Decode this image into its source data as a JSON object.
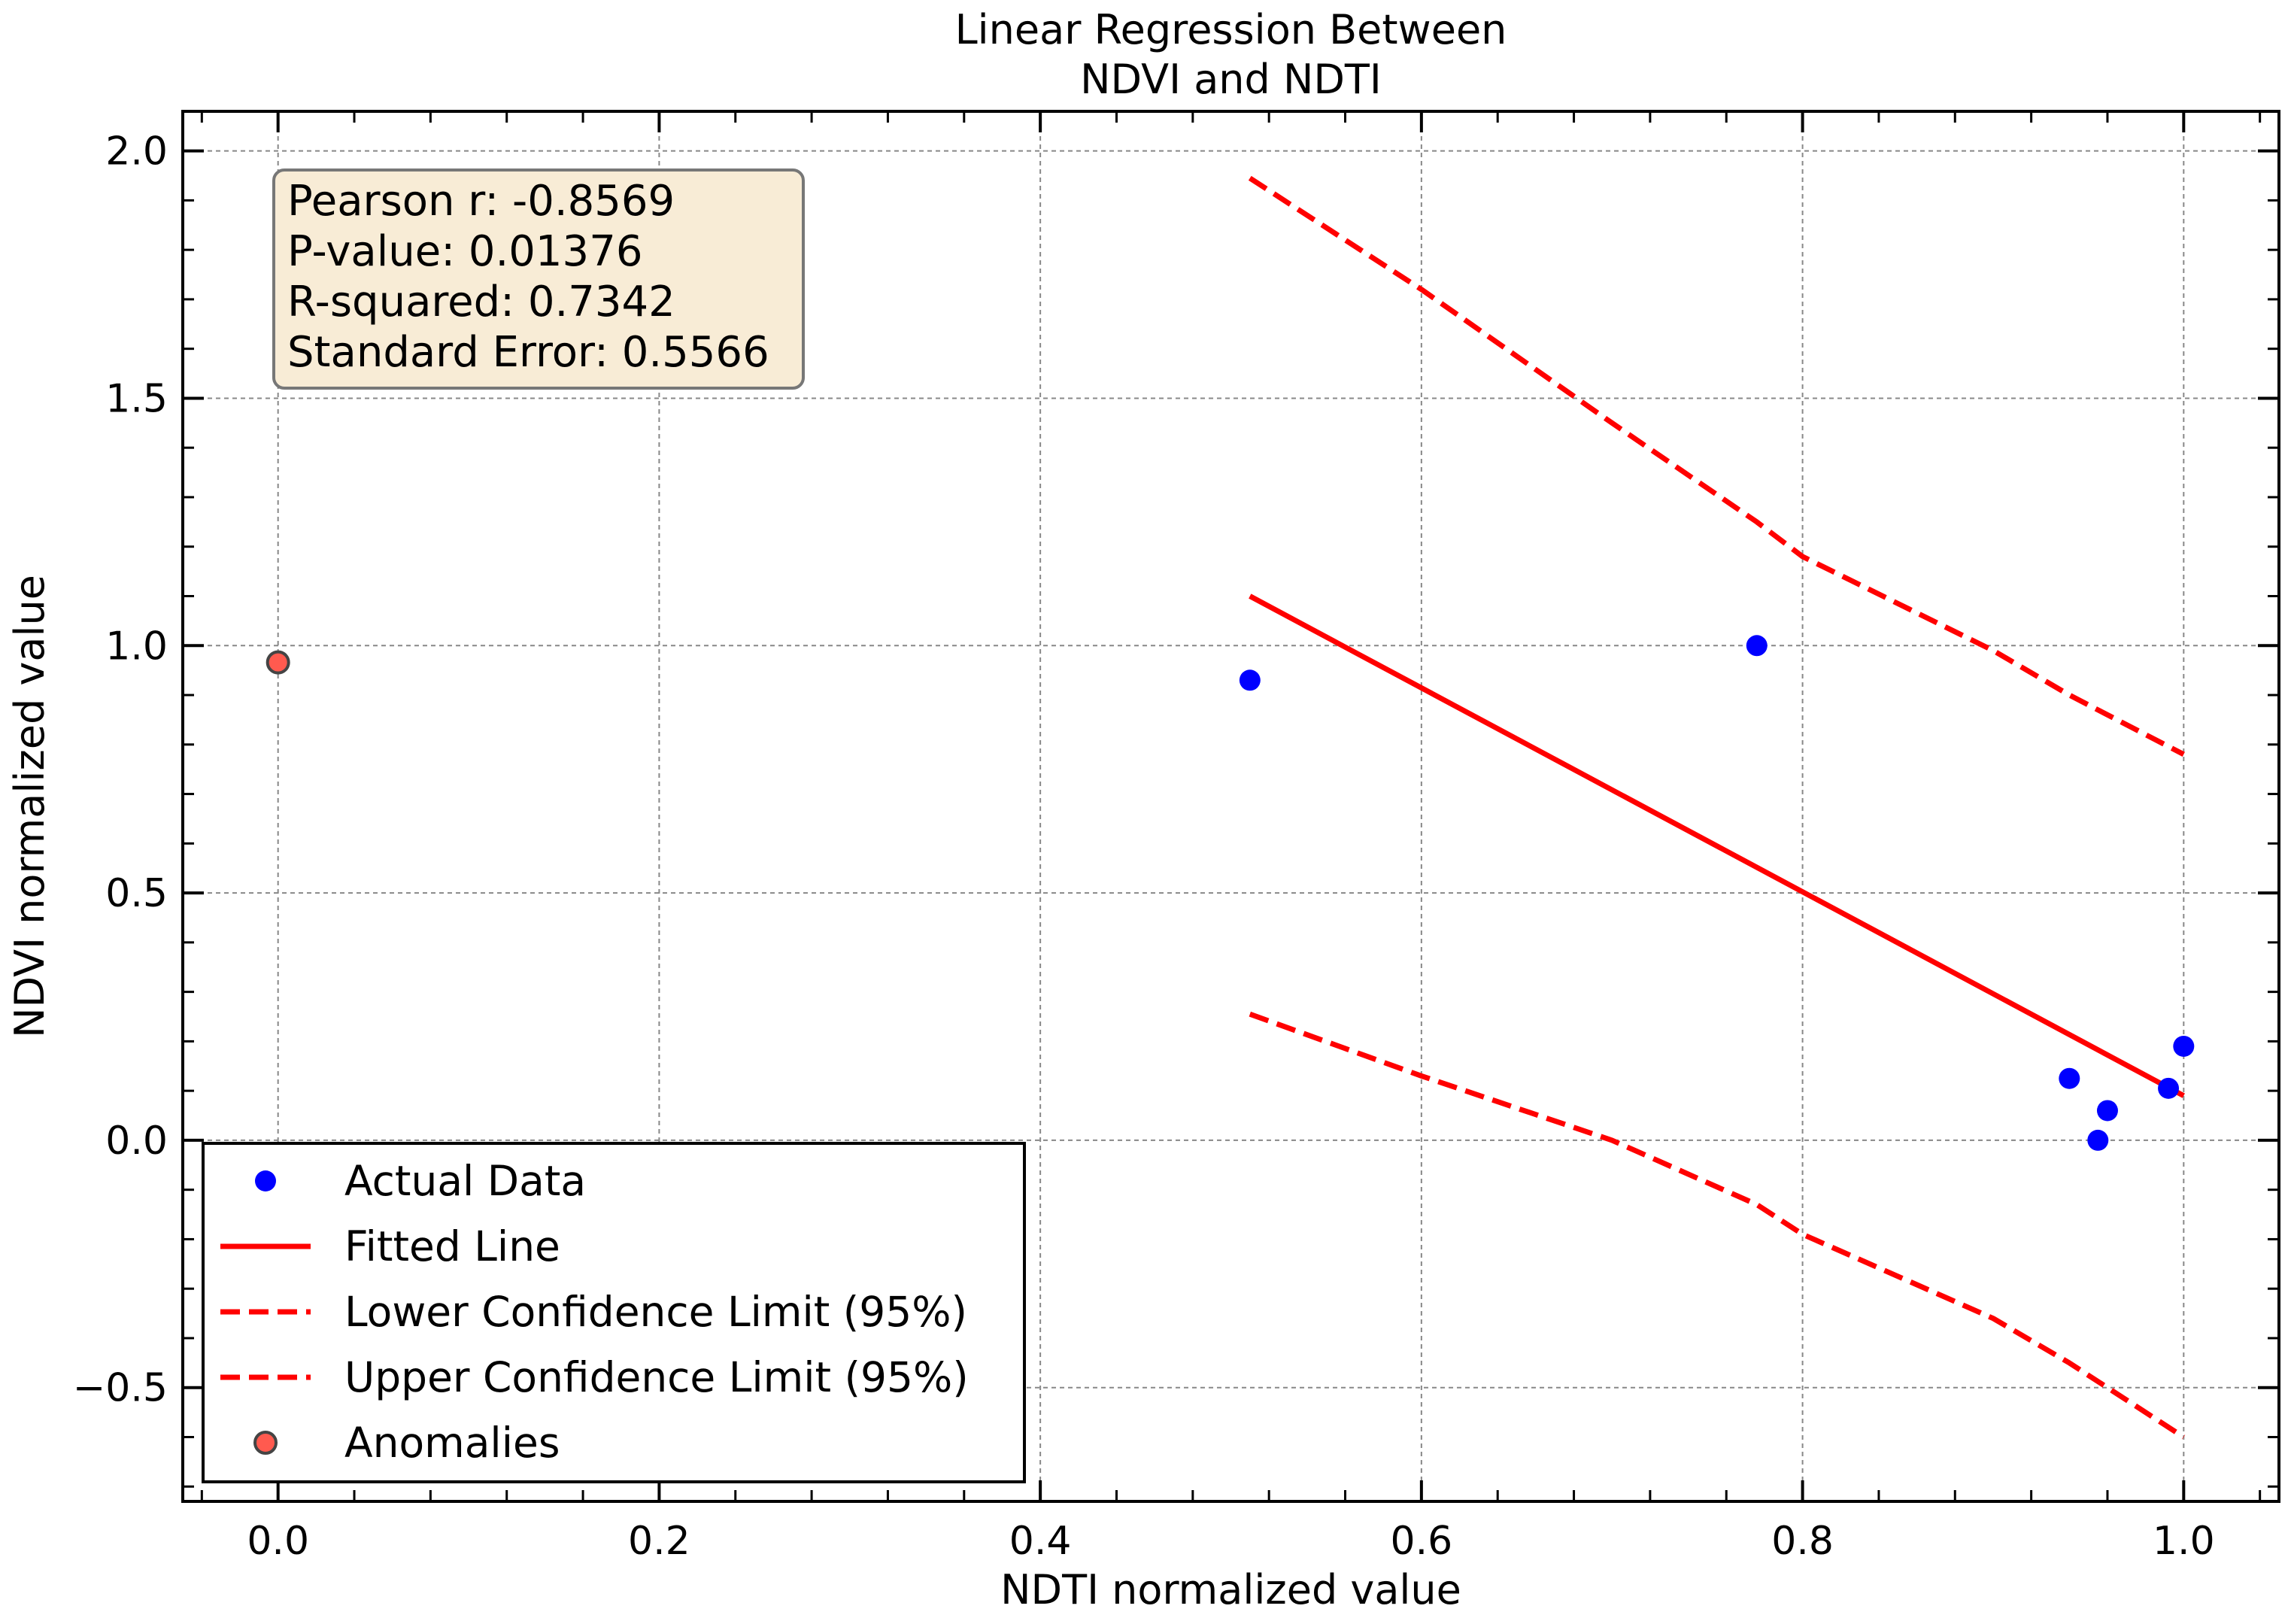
{
  "chart_data": {
    "type": "scatter",
    "title": "Linear Regression Between\nNDVI and NDTI",
    "title_lines": [
      "Linear Regression Between",
      "NDVI and NDTI"
    ],
    "xlabel": "NDTI normalized value",
    "ylabel": "NDVI normalized value",
    "xlim": [
      -0.05,
      1.05
    ],
    "ylim": [
      -0.73,
      2.08
    ],
    "x_ticks": [
      0.0,
      0.2,
      0.4,
      0.6,
      0.8,
      1.0
    ],
    "x_tick_labels": [
      "0.0",
      "0.2",
      "0.4",
      "0.6",
      "0.8",
      "1.0"
    ],
    "y_ticks": [
      -0.5,
      0.0,
      0.5,
      1.0,
      1.5,
      2.0
    ],
    "y_tick_labels": [
      "−0.5",
      "0.0",
      "0.5",
      "1.0",
      "1.5",
      "2.0"
    ],
    "grid": true,
    "legend_position": "lower-left",
    "stats_box": {
      "lines": [
        "Pearson r: -0.8569",
        "P-value: 0.01376",
        "R-squared: 0.7342",
        "Standard Error: 0.5566"
      ],
      "position": "top-left"
    },
    "series": [
      {
        "name": "Actual Data",
        "kind": "scatter",
        "color": "#0000ff",
        "points": [
          [
            0.51,
            0.93
          ],
          [
            0.776,
            1.0
          ],
          [
            0.94,
            0.125
          ],
          [
            0.955,
            0.0
          ],
          [
            0.96,
            0.06
          ],
          [
            0.992,
            0.105
          ],
          [
            1.0,
            0.19
          ]
        ]
      },
      {
        "name": "Fitted Line",
        "kind": "line",
        "color": "#ff0000",
        "points": [
          [
            0.51,
            1.1
          ],
          [
            1.0,
            0.09
          ]
        ]
      },
      {
        "name": "Lower Confidence Limit (95%)",
        "kind": "dashed",
        "color": "#ff0000",
        "points": [
          [
            0.51,
            0.255
          ],
          [
            0.6,
            0.13
          ],
          [
            0.7,
            0.0
          ],
          [
            0.776,
            -0.13
          ],
          [
            0.8,
            -0.19
          ],
          [
            0.9,
            -0.36
          ],
          [
            0.94,
            -0.45
          ],
          [
            1.0,
            -0.6
          ]
        ]
      },
      {
        "name": "Upper Confidence Limit (95%)",
        "kind": "dashed",
        "color": "#ff0000",
        "points": [
          [
            0.51,
            1.945
          ],
          [
            0.6,
            1.72
          ],
          [
            0.7,
            1.45
          ],
          [
            0.776,
            1.25
          ],
          [
            0.8,
            1.18
          ],
          [
            0.9,
            0.99
          ],
          [
            0.94,
            0.9
          ],
          [
            1.0,
            0.78
          ]
        ]
      },
      {
        "name": "Anomalies",
        "kind": "scatter",
        "color": "#ff5a4f",
        "points": [
          [
            0.0,
            0.966
          ]
        ]
      }
    ]
  }
}
